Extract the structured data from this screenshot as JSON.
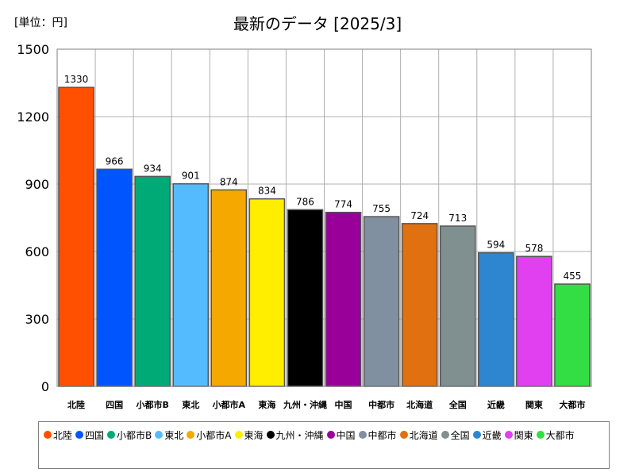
{
  "chart_data": {
    "type": "bar",
    "title": "最新のデータ [2025/3]",
    "unit_label": "[単位：円]",
    "xlabel": "",
    "ylabel": "",
    "ylim": [
      0,
      1500
    ],
    "yticks": [
      0,
      300,
      600,
      900,
      1200,
      1500
    ],
    "grid": true,
    "legend_position": "bottom",
    "categories": [
      "北陸",
      "四国",
      "小都市B",
      "東北",
      "小都市A",
      "東海",
      "九州・沖縄",
      "中国",
      "中都市",
      "北海道",
      "全国",
      "近畿",
      "関東",
      "大都市"
    ],
    "values": [
      1330,
      966,
      934,
      901,
      874,
      834,
      786,
      774,
      755,
      724,
      713,
      594,
      578,
      455
    ],
    "colors": [
      "#ff4f00",
      "#0055ff",
      "#00aa77",
      "#55bbff",
      "#f5a800",
      "#ffee00",
      "#000000",
      "#990099",
      "#8090a0",
      "#e07010",
      "#809090",
      "#2e86d0",
      "#e040f0",
      "#33dd44"
    ]
  }
}
